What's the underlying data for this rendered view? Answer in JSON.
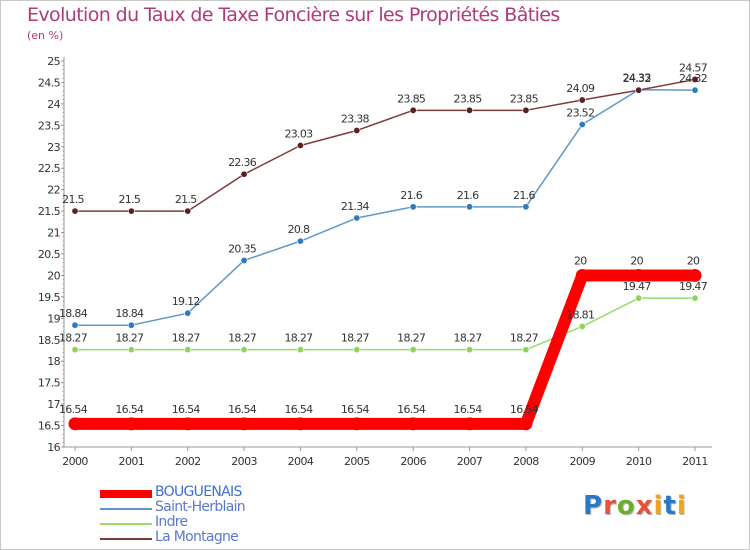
{
  "title": "Evolution du Taux de Taxe Foncière sur les Propriétés Bâties",
  "subtitle": "(en %)",
  "logo": {
    "letters": [
      "P",
      "r",
      "o",
      "x",
      "i",
      "t",
      "i"
    ],
    "colors": [
      "#2a79c6",
      "#e8523b",
      "#6cae2c",
      "#e8523b",
      "#f2a31a",
      "#2a79c6",
      "#f2a31a"
    ]
  },
  "chart_data": {
    "type": "line",
    "x": [
      "2000",
      "2001",
      "2002",
      "2003",
      "2004",
      "2005",
      "2006",
      "2007",
      "2008",
      "2009",
      "2010",
      "2011"
    ],
    "ylim": [
      16,
      25
    ],
    "yticks": [
      "16",
      "16.5",
      "17",
      "17.5",
      "18",
      "18.5",
      "19",
      "19.5",
      "20",
      "20.5",
      "21",
      "21.5",
      "22",
      "22.5",
      "23",
      "23.5",
      "24",
      "24.5",
      "25"
    ],
    "grid": false,
    "legend_position": "bottom-left",
    "series": [
      {
        "name": "BOUGUENAIS",
        "color": "#ff0000",
        "values": [
          16.54,
          16.54,
          16.54,
          16.54,
          16.54,
          16.54,
          16.54,
          16.54,
          16.54,
          20,
          20,
          20
        ],
        "labels": [
          "16.54",
          "16.54",
          "16.54",
          "16.54",
          "16.54",
          "16.54",
          "16.54",
          "16.54",
          "16.54",
          "20",
          "20",
          "20"
        ]
      },
      {
        "name": "Saint-Herblain",
        "color": "#5f97c8",
        "values": [
          18.84,
          18.84,
          19.12,
          20.35,
          20.8,
          21.34,
          21.6,
          21.6,
          21.6,
          23.52,
          24.33,
          24.32
        ],
        "labels": [
          "18.84",
          "18.84",
          "19.12",
          "20.35",
          "20.8",
          "21.34",
          "21.6",
          "21.6",
          "21.6",
          "23.52",
          "24.33",
          "24.32"
        ]
      },
      {
        "name": "Indre",
        "color": "#9adc6a",
        "values": [
          18.27,
          18.27,
          18.27,
          18.27,
          18.27,
          18.27,
          18.27,
          18.27,
          18.27,
          18.81,
          19.47,
          19.47
        ],
        "labels": [
          "18.27",
          "18.27",
          "18.27",
          "18.27",
          "18.27",
          "18.27",
          "18.27",
          "18.27",
          "18.27",
          "18.81",
          "19.47",
          "19.47"
        ]
      },
      {
        "name": "La Montagne",
        "color": "#7f3a3a",
        "values": [
          21.5,
          21.5,
          21.5,
          22.36,
          23.03,
          23.38,
          23.85,
          23.85,
          23.85,
          24.09,
          24.32,
          24.57
        ],
        "labels": [
          "21.5",
          "21.5",
          "21.5",
          "22.36",
          "23.03",
          "23.38",
          "23.85",
          "23.85",
          "23.85",
          "24.09",
          "24.32",
          "24.57"
        ]
      }
    ]
  }
}
